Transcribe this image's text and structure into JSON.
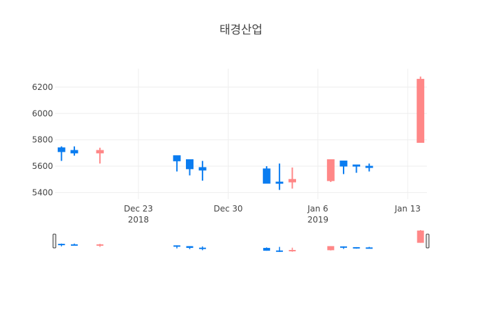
{
  "chart_data": {
    "type": "candlestick",
    "title": "태경산업",
    "xlabel": "",
    "ylabel": "",
    "x_ticks": [
      {
        "date": "2018-12-23",
        "label": "Dec 23",
        "sublabel": "2018"
      },
      {
        "date": "2018-12-30",
        "label": "Dec 30",
        "sublabel": ""
      },
      {
        "date": "2019-01-06",
        "label": "Jan 6",
        "sublabel": "2019"
      },
      {
        "date": "2019-01-13",
        "label": "Jan 13",
        "sublabel": ""
      }
    ],
    "xlim": [
      "2018-12-17",
      "2019-01-14"
    ],
    "y_ticks": [
      5400,
      5600,
      5800,
      6000,
      6200
    ],
    "ylim": [
      5350,
      6340
    ],
    "grid": true,
    "legend": "none",
    "rangeslider": true,
    "colors": {
      "increasing": "#ff8787",
      "decreasing": "#0a7cf0"
    },
    "candles": [
      {
        "date": "2018-12-17",
        "open": 5740,
        "high": 5750,
        "low": 5640,
        "close": 5710
      },
      {
        "date": "2018-12-18",
        "open": 5720,
        "high": 5750,
        "low": 5680,
        "close": 5700
      },
      {
        "date": "2018-12-20",
        "open": 5700,
        "high": 5740,
        "low": 5620,
        "close": 5720
      },
      {
        "date": "2018-12-26",
        "open": 5680,
        "high": 5680,
        "low": 5560,
        "close": 5640
      },
      {
        "date": "2018-12-27",
        "open": 5650,
        "high": 5650,
        "low": 5530,
        "close": 5580
      },
      {
        "date": "2018-12-28",
        "open": 5590,
        "high": 5640,
        "low": 5490,
        "close": 5570
      },
      {
        "date": "2019-01-02",
        "open": 5580,
        "high": 5600,
        "low": 5470,
        "close": 5470
      },
      {
        "date": "2019-01-03",
        "open": 5480,
        "high": 5620,
        "low": 5420,
        "close": 5470
      },
      {
        "date": "2019-01-04",
        "open": 5480,
        "high": 5590,
        "low": 5430,
        "close": 5500
      },
      {
        "date": "2019-01-07",
        "open": 5490,
        "high": 5650,
        "low": 5480,
        "close": 5650
      },
      {
        "date": "2019-01-08",
        "open": 5640,
        "high": 5640,
        "low": 5540,
        "close": 5600
      },
      {
        "date": "2019-01-09",
        "open": 5610,
        "high": 5610,
        "low": 5550,
        "close": 5600
      },
      {
        "date": "2019-01-10",
        "open": 5600,
        "high": 5620,
        "low": 5560,
        "close": 5590
      },
      {
        "date": "2019-01-14",
        "open": 5780,
        "high": 6280,
        "low": 5780,
        "close": 6260
      }
    ]
  }
}
